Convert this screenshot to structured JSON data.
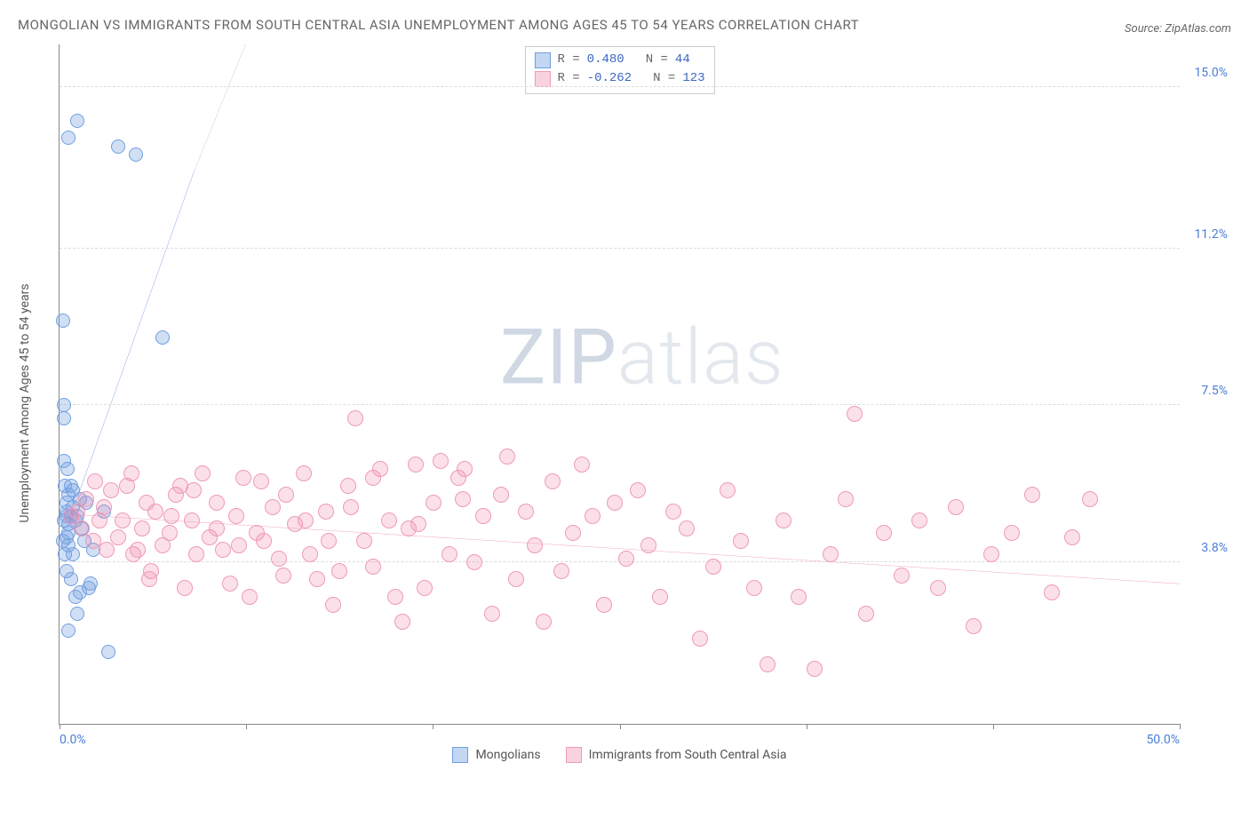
{
  "header": {
    "title": "MONGOLIAN VS IMMIGRANTS FROM SOUTH CENTRAL ASIA UNEMPLOYMENT AMONG AGES 45 TO 54 YEARS CORRELATION CHART",
    "source": "Source: ZipAtlas.com"
  },
  "chart": {
    "type": "scatter",
    "ylabel": "Unemployment Among Ages 45 to 54 years",
    "background_color": "#ffffff",
    "grid_color": "#dddddd",
    "axis_color": "#888888",
    "xlim": [
      0,
      50
    ],
    "ylim": [
      0,
      16
    ],
    "x_ticks": [
      0,
      8.33,
      16.67,
      25,
      33.33,
      41.67,
      50
    ],
    "x_tick_labels_shown": {
      "0": "0.0%",
      "50": "50.0%"
    },
    "y_ticks": [
      3.8,
      7.5,
      11.2,
      15.0
    ],
    "y_tick_labels": [
      "3.8%",
      "7.5%",
      "11.2%",
      "15.0%"
    ],
    "watermark": {
      "part1": "ZIP",
      "part2": "atlas"
    },
    "series": [
      {
        "key": "mongolians",
        "label": "Mongolians",
        "color_fill": "rgba(122,164,226,0.35)",
        "color_stroke": "#6f9fe0",
        "marker_size": 16,
        "R": "0.480",
        "N": "44",
        "trend": {
          "color": "#2e5fc9",
          "width": 2,
          "solid": {
            "x1": 0.3,
            "y1": 4.6,
            "x2": 6.0,
            "y2": 13.0
          },
          "dashed": {
            "x1": 6.0,
            "y1": 13.0,
            "x2": 8.3,
            "y2": 16.0
          }
        },
        "points": [
          [
            0.2,
            4.8
          ],
          [
            0.3,
            5.0
          ],
          [
            0.4,
            4.5
          ],
          [
            0.5,
            4.9
          ],
          [
            0.3,
            5.2
          ],
          [
            0.6,
            5.1
          ],
          [
            0.4,
            4.2
          ],
          [
            0.5,
            3.4
          ],
          [
            0.7,
            3.0
          ],
          [
            0.8,
            2.6
          ],
          [
            0.9,
            3.1
          ],
          [
            0.4,
            2.2
          ],
          [
            1.3,
            3.2
          ],
          [
            1.4,
            3.3
          ],
          [
            0.2,
            6.2
          ],
          [
            0.2,
            7.2
          ],
          [
            0.2,
            7.5
          ],
          [
            0.15,
            9.5
          ],
          [
            0.3,
            4.9
          ],
          [
            0.4,
            5.4
          ],
          [
            0.8,
            14.2
          ],
          [
            0.4,
            13.8
          ],
          [
            2.6,
            13.6
          ],
          [
            3.4,
            13.4
          ],
          [
            4.6,
            9.1
          ],
          [
            1.0,
            4.6
          ],
          [
            1.2,
            5.2
          ],
          [
            1.5,
            4.1
          ],
          [
            2.0,
            5.0
          ],
          [
            2.2,
            1.7
          ],
          [
            0.6,
            4.0
          ],
          [
            0.7,
            4.8
          ],
          [
            0.3,
            3.6
          ],
          [
            0.9,
            5.3
          ],
          [
            1.1,
            4.3
          ],
          [
            0.25,
            5.6
          ],
          [
            0.35,
            6.0
          ],
          [
            0.5,
            5.6
          ],
          [
            0.15,
            4.3
          ],
          [
            0.25,
            4.0
          ],
          [
            0.4,
            4.7
          ],
          [
            0.6,
            5.5
          ],
          [
            0.3,
            4.4
          ],
          [
            0.8,
            4.9
          ]
        ]
      },
      {
        "key": "sca",
        "label": "Immigrants from South Central Asia",
        "color_fill": "rgba(241,143,177,0.28)",
        "color_stroke": "#ef9ab8",
        "marker_size": 18,
        "R": "-0.262",
        "N": "123",
        "trend": {
          "color": "#ea5b8a",
          "width": 2,
          "solid": {
            "x1": 0,
            "y1": 4.95,
            "x2": 50,
            "y2": 3.3
          }
        },
        "points": [
          [
            0.5,
            4.9
          ],
          [
            0.8,
            5.0
          ],
          [
            1.0,
            4.6
          ],
          [
            1.2,
            5.3
          ],
          [
            1.5,
            4.3
          ],
          [
            1.8,
            4.8
          ],
          [
            2.0,
            5.1
          ],
          [
            2.3,
            5.5
          ],
          [
            2.6,
            4.4
          ],
          [
            2.8,
            4.8
          ],
          [
            3.0,
            5.6
          ],
          [
            3.3,
            4.0
          ],
          [
            3.5,
            4.1
          ],
          [
            3.7,
            4.6
          ],
          [
            3.9,
            5.2
          ],
          [
            4.1,
            3.6
          ],
          [
            4.3,
            5.0
          ],
          [
            4.6,
            4.2
          ],
          [
            4.9,
            4.5
          ],
          [
            5.2,
            5.4
          ],
          [
            5.4,
            5.6
          ],
          [
            5.6,
            3.2
          ],
          [
            5.9,
            4.8
          ],
          [
            6.1,
            4.0
          ],
          [
            6.4,
            5.9
          ],
          [
            6.7,
            4.4
          ],
          [
            7.0,
            5.2
          ],
          [
            7.3,
            4.1
          ],
          [
            7.6,
            3.3
          ],
          [
            7.9,
            4.9
          ],
          [
            8.2,
            5.8
          ],
          [
            8.5,
            3.0
          ],
          [
            8.8,
            4.5
          ],
          [
            9.1,
            4.3
          ],
          [
            9.5,
            5.1
          ],
          [
            9.8,
            3.9
          ],
          [
            10.1,
            5.4
          ],
          [
            10.5,
            4.7
          ],
          [
            10.9,
            5.9
          ],
          [
            11.2,
            4.0
          ],
          [
            11.5,
            3.4
          ],
          [
            11.9,
            5.0
          ],
          [
            12.2,
            2.8
          ],
          [
            12.5,
            3.6
          ],
          [
            12.9,
            5.6
          ],
          [
            13.2,
            7.2
          ],
          [
            13.6,
            4.3
          ],
          [
            14.0,
            5.8
          ],
          [
            14.3,
            6.0
          ],
          [
            14.7,
            4.8
          ],
          [
            15.0,
            3.0
          ],
          [
            15.3,
            2.4
          ],
          [
            15.6,
            4.6
          ],
          [
            15.9,
            6.1
          ],
          [
            16.3,
            3.2
          ],
          [
            16.7,
            5.2
          ],
          [
            17.0,
            6.2
          ],
          [
            17.4,
            4.0
          ],
          [
            17.8,
            5.8
          ],
          [
            18.1,
            6.0
          ],
          [
            18.5,
            3.8
          ],
          [
            18.9,
            4.9
          ],
          [
            19.3,
            2.6
          ],
          [
            19.7,
            5.4
          ],
          [
            20.0,
            6.3
          ],
          [
            20.4,
            3.4
          ],
          [
            20.8,
            5.0
          ],
          [
            21.2,
            4.2
          ],
          [
            21.6,
            2.4
          ],
          [
            22.0,
            5.7
          ],
          [
            22.4,
            3.6
          ],
          [
            22.9,
            4.5
          ],
          [
            23.3,
            6.1
          ],
          [
            23.8,
            4.9
          ],
          [
            24.3,
            2.8
          ],
          [
            24.8,
            5.2
          ],
          [
            25.3,
            3.9
          ],
          [
            25.8,
            5.5
          ],
          [
            26.3,
            4.2
          ],
          [
            26.8,
            3.0
          ],
          [
            27.4,
            5.0
          ],
          [
            28.0,
            4.6
          ],
          [
            28.6,
            2.0
          ],
          [
            29.2,
            3.7
          ],
          [
            29.8,
            5.5
          ],
          [
            30.4,
            4.3
          ],
          [
            31.0,
            3.2
          ],
          [
            31.6,
            1.4
          ],
          [
            32.3,
            4.8
          ],
          [
            33.0,
            3.0
          ],
          [
            33.7,
            1.3
          ],
          [
            34.4,
            4.0
          ],
          [
            35.1,
            5.3
          ],
          [
            35.5,
            7.3
          ],
          [
            36.0,
            2.6
          ],
          [
            36.8,
            4.5
          ],
          [
            37.6,
            3.5
          ],
          [
            38.4,
            4.8
          ],
          [
            39.2,
            3.2
          ],
          [
            40.0,
            5.1
          ],
          [
            40.8,
            2.3
          ],
          [
            41.6,
            4.0
          ],
          [
            42.5,
            4.5
          ],
          [
            43.4,
            5.4
          ],
          [
            44.3,
            3.1
          ],
          [
            45.2,
            4.4
          ],
          [
            46.0,
            5.3
          ],
          [
            1.6,
            5.7
          ],
          [
            2.1,
            4.1
          ],
          [
            3.2,
            5.9
          ],
          [
            4.0,
            3.4
          ],
          [
            5.0,
            4.9
          ],
          [
            6.0,
            5.5
          ],
          [
            7.0,
            4.6
          ],
          [
            8.0,
            4.2
          ],
          [
            9.0,
            5.7
          ],
          [
            10.0,
            3.5
          ],
          [
            11.0,
            4.8
          ],
          [
            12.0,
            4.3
          ],
          [
            13.0,
            5.1
          ],
          [
            14.0,
            3.7
          ],
          [
            16.0,
            4.7
          ],
          [
            18.0,
            5.3
          ]
        ]
      }
    ],
    "legend_bottom": [
      {
        "swatch": "blue",
        "label": "Mongolians"
      },
      {
        "swatch": "pink",
        "label": "Immigrants from South Central Asia"
      }
    ],
    "stat_box": {
      "rows": [
        {
          "swatch": "blue",
          "r_label": "R =",
          "r_val": " 0.480",
          "n_label": "N =",
          "n_val": " 44"
        },
        {
          "swatch": "pink",
          "r_label": "R =",
          "r_val": "-0.262",
          "n_label": "N =",
          "n_val": "123"
        }
      ]
    }
  }
}
